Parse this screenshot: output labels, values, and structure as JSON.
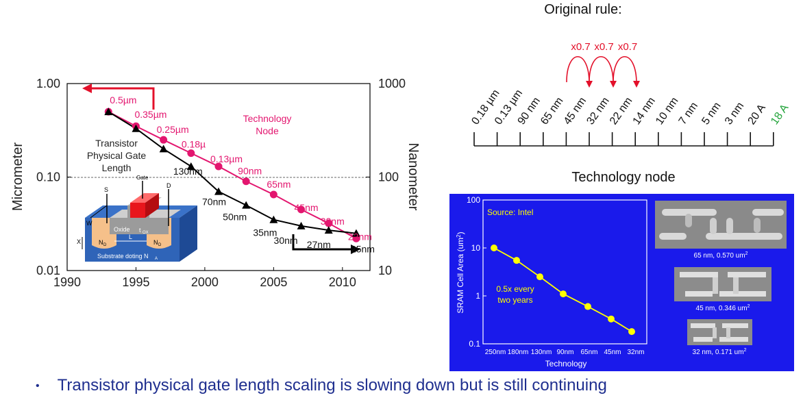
{
  "chart_data": [
    {
      "type": "line",
      "yscale": "log",
      "xlim": [
        1990,
        2012
      ],
      "ylim": [
        0.01,
        1.0
      ],
      "x_ticks": [
        "1990",
        "1995",
        "2000",
        "2005",
        "2010"
      ],
      "y_left_ticks": [
        "1.00",
        "0.10",
        "0.01"
      ],
      "y_right_ticks": [
        "1000",
        "100",
        "10"
      ],
      "ylabel_left": "Micrometer",
      "ylabel_right": "Nanometer",
      "annotation_tech_node": [
        "Technology",
        "Node"
      ],
      "annotation_gate_length": [
        "Transistor",
        "Physical Gate",
        "Length"
      ],
      "series": [
        {
          "name": "Technology Node",
          "color": "#e3166f",
          "points": [
            {
              "x": 1993,
              "y": 0.5,
              "label": "0.5µm"
            },
            {
              "x": 1995,
              "y": 0.35,
              "label": "0.35µm"
            },
            {
              "x": 1997,
              "y": 0.25,
              "label": "0.25µm"
            },
            {
              "x": 1999,
              "y": 0.18,
              "label": "0.18µ"
            },
            {
              "x": 2001,
              "y": 0.13,
              "label": "0.13µm"
            },
            {
              "x": 2003,
              "y": 0.09,
              "label": "90nm"
            },
            {
              "x": 2005,
              "y": 0.065,
              "label": "65nm"
            },
            {
              "x": 2007,
              "y": 0.045,
              "label": "45nm"
            },
            {
              "x": 2009,
              "y": 0.032,
              "label": "32nm"
            },
            {
              "x": 2011,
              "y": 0.022,
              "label": "22nm"
            }
          ]
        },
        {
          "name": "Transistor Physical Gate Length",
          "color": "#000000",
          "points": [
            {
              "x": 1993,
              "y": 0.5
            },
            {
              "x": 1995,
              "y": 0.33
            },
            {
              "x": 1997,
              "y": 0.2
            },
            {
              "x": 1999,
              "y": 0.13,
              "label": "130nm"
            },
            {
              "x": 2001,
              "y": 0.07,
              "label": "70nm"
            },
            {
              "x": 2003,
              "y": 0.05,
              "label": "50nm"
            },
            {
              "x": 2005,
              "y": 0.035,
              "label": "35nm"
            },
            {
              "x": 2007,
              "y": 0.03,
              "label": "30nm"
            },
            {
              "x": 2009,
              "y": 0.027,
              "label": "27nm"
            },
            {
              "x": 2011,
              "y": 0.025,
              "label": "25nm"
            }
          ]
        }
      ],
      "inset_labels": [
        "Gate",
        "S",
        "D",
        "W",
        "Oxide",
        "t",
        "OX",
        "X",
        "N",
        "D",
        "L",
        "N",
        "D",
        "Substrate doting N",
        "A"
      ]
    },
    {
      "type": "scatter",
      "yscale": "log",
      "ylim": [
        0.1,
        100
      ],
      "y_ticks": [
        "100",
        "10",
        "1",
        "0.1"
      ],
      "categories": [
        "250nm",
        "180nm",
        "130nm",
        "90nm",
        "65nm",
        "45nm",
        "32nm"
      ],
      "values": [
        10,
        5.5,
        2.5,
        1.1,
        0.6,
        0.33,
        0.18
      ],
      "ylabel": "SRAM Cell Area (um",
      "ylabel_sup": "2",
      "ylabel_end": ")",
      "xlabel": "Technology",
      "source": "Source: Intel",
      "annotation": [
        "0.5x every",
        "two years"
      ],
      "background": "#1a1aeb",
      "point_color": "#ffff00"
    }
  ],
  "rule_diagram": {
    "title": "Original rule:",
    "multipliers": [
      "x0.7",
      "x0.7",
      "x0.7"
    ],
    "nodes": [
      "0.18 µm",
      "0.13 µm",
      "90 nm",
      "65 nm",
      "45 nm",
      "32 nm",
      "22 nm",
      "14 nm",
      "10 nm",
      "7 nm",
      "5 nm",
      "3 nm",
      "20 A"
    ],
    "highlight_node": "18 A",
    "highlight_color": "#22a33a",
    "caption": "Technology node"
  },
  "micrographs": [
    {
      "label": "65 nm, 0.570 um",
      "sup": "2"
    },
    {
      "label": "45 nm, 0.346 um",
      "sup": "2"
    },
    {
      "label": "32 nm, 0.171 um",
      "sup": "2"
    }
  ],
  "bullet": "Transistor physical gate length scaling is slowing down but is still continuing"
}
